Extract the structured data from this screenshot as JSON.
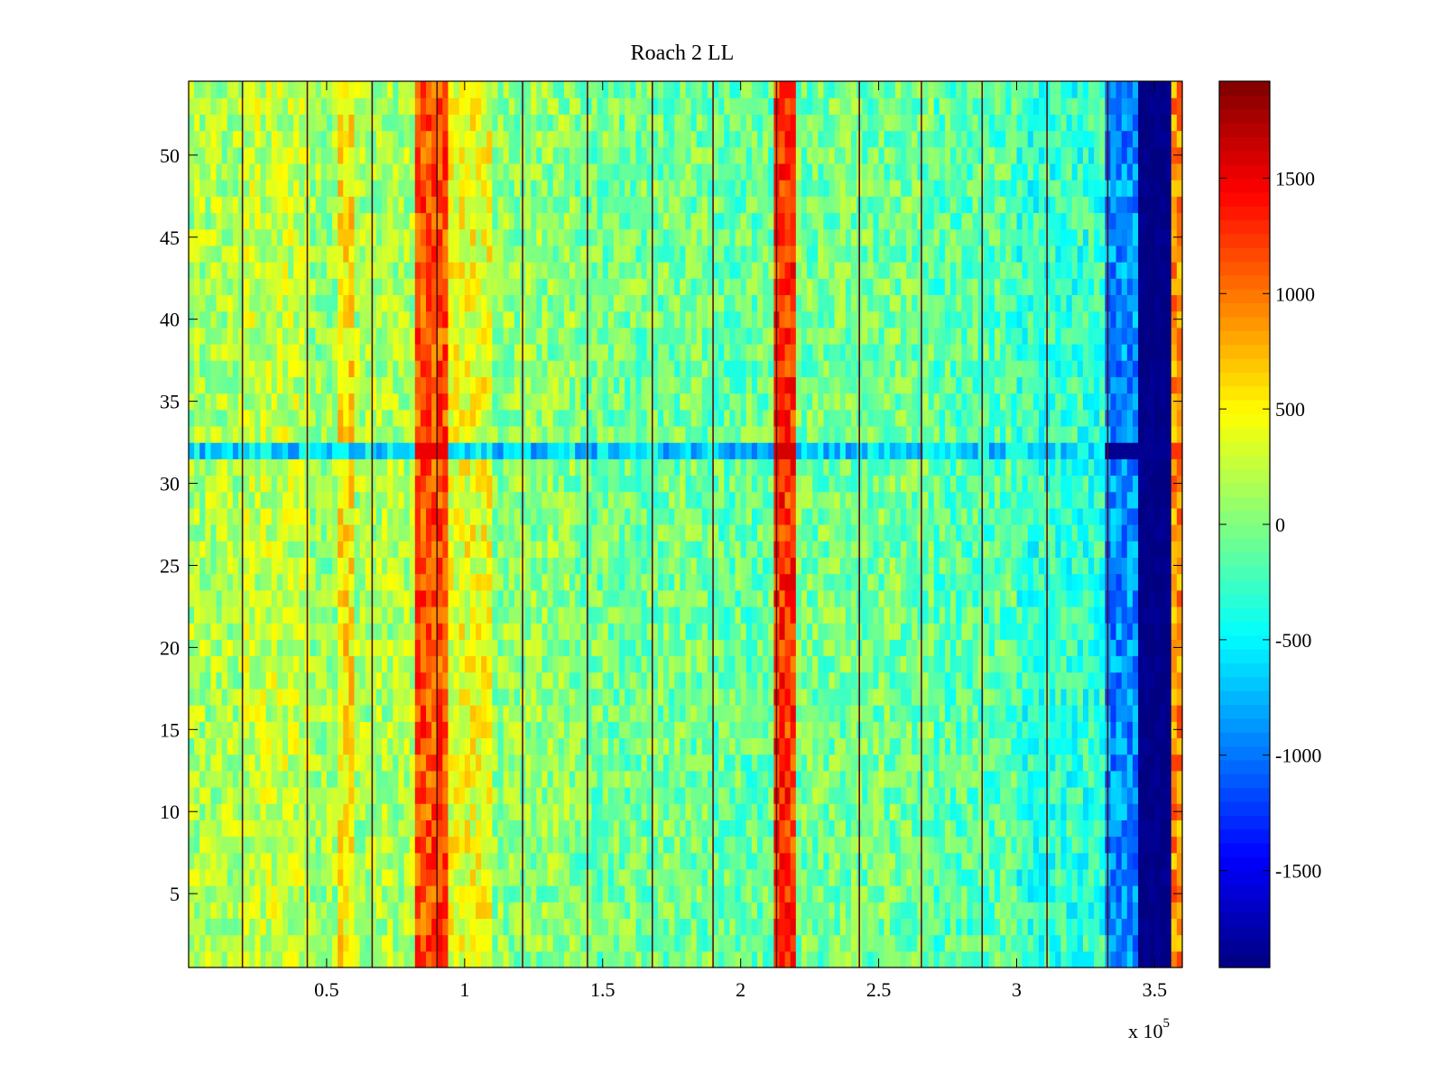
{
  "chart_data": {
    "type": "heatmap",
    "title": "Roach 2 LL",
    "xlabel": "",
    "ylabel": "",
    "x_exponent_label": "x 10",
    "x_exponent_power": "5",
    "xlim": [
      0,
      3.6
    ],
    "ylim": [
      0.5,
      54.5
    ],
    "x_ticks": [
      0.5,
      1,
      1.5,
      2,
      2.5,
      3,
      3.5
    ],
    "x_tick_labels": [
      "0.5",
      "1",
      "1.5",
      "2",
      "2.5",
      "3",
      "3.5"
    ],
    "y_ticks": [
      5,
      10,
      15,
      20,
      25,
      30,
      35,
      40,
      45,
      50
    ],
    "y_tick_labels": [
      "5",
      "10",
      "15",
      "20",
      "25",
      "30",
      "35",
      "40",
      "45",
      "50"
    ],
    "rows": 54,
    "colorbar": {
      "colormap": "jet",
      "clim": [
        -1920,
        1920
      ],
      "ticks": [
        1500,
        1000,
        500,
        0,
        -500,
        -1000,
        -1500
      ],
      "tick_labels": [
        "1500",
        "1000",
        "500",
        "0",
        "-500",
        "-1000",
        "-1500"
      ]
    },
    "column_profile": [
      {
        "x_from": 0.0,
        "x_to": 0.2,
        "mean": 150
      },
      {
        "x_from": 0.2,
        "x_to": 0.45,
        "mean": 250
      },
      {
        "x_from": 0.45,
        "x_to": 0.55,
        "mean": 100
      },
      {
        "x_from": 0.55,
        "x_to": 0.6,
        "mean": 550
      },
      {
        "x_from": 0.6,
        "x_to": 0.83,
        "mean": 150
      },
      {
        "x_from": 0.83,
        "x_to": 0.95,
        "mean": 1150
      },
      {
        "x_from": 0.95,
        "x_to": 1.1,
        "mean": 400
      },
      {
        "x_from": 1.1,
        "x_to": 1.4,
        "mean": 50
      },
      {
        "x_from": 1.4,
        "x_to": 1.9,
        "mean": -50
      },
      {
        "x_from": 1.9,
        "x_to": 2.12,
        "mean": -100
      },
      {
        "x_from": 2.12,
        "x_to": 2.2,
        "mean": 1250
      },
      {
        "x_from": 2.2,
        "x_to": 2.7,
        "mean": -50
      },
      {
        "x_from": 2.7,
        "x_to": 3.0,
        "mean": -150
      },
      {
        "x_from": 3.0,
        "x_to": 3.33,
        "mean": -300
      },
      {
        "x_from": 3.33,
        "x_to": 3.44,
        "mean": -900
      },
      {
        "x_from": 3.44,
        "x_to": 3.56,
        "mean": -1900
      },
      {
        "x_from": 3.56,
        "x_to": 3.6,
        "mean": 900
      }
    ],
    "vertical_boundaries": [
      0.195,
      0.43,
      0.665,
      0.9,
      1.21,
      1.445,
      1.68,
      1.9,
      2.13,
      2.43,
      2.655,
      2.875,
      3.11,
      3.33
    ],
    "horizontal_band": {
      "row": 32,
      "values_follow_profile_extreme": true
    }
  }
}
